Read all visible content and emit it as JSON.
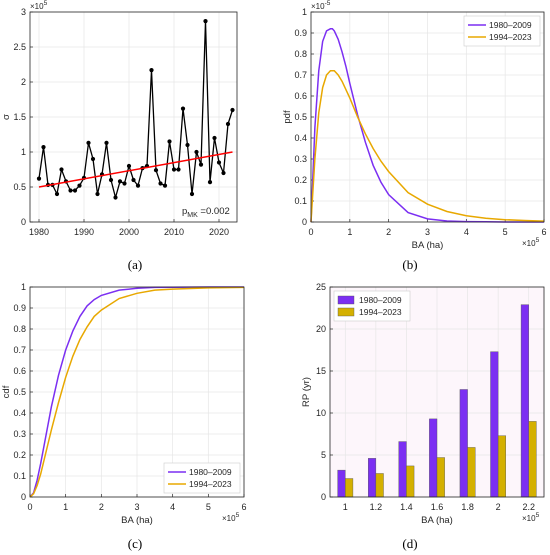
{
  "chart_data": [
    {
      "panel": "(a)",
      "type": "line",
      "xlim": [
        1978,
        2024
      ],
      "ylim": [
        0,
        300000
      ],
      "y_exponent": "×10^5",
      "xticks": [
        1980,
        1990,
        2000,
        2010,
        2020
      ],
      "yticks": [
        0,
        50000,
        100000,
        150000,
        200000,
        250000,
        300000
      ],
      "ytick_labels": [
        "0",
        "0.5",
        "1",
        "1.5",
        "2",
        "2.5",
        "3"
      ],
      "ylabel": "σ",
      "annotation": {
        "text": "p",
        "sub": "MK",
        "suffix": " =0.002"
      },
      "grid": true,
      "colors": {
        "data": "#000000",
        "trend": "#ff0000"
      },
      "series": [
        {
          "x": [
            1980,
            1981,
            1982,
            1983,
            1984,
            1985,
            1986,
            1987,
            1988,
            1989,
            1990,
            1991,
            1992,
            1993,
            1994,
            1995,
            1996,
            1997,
            1998,
            1999,
            2000,
            2001,
            2002,
            2003,
            2004,
            2005,
            2006,
            2007,
            2008,
            2009,
            2010,
            2011,
            2012,
            2013,
            2014,
            2015,
            2016,
            2017,
            2018,
            2019,
            2020,
            2021,
            2022,
            2023
          ],
          "values": [
            62000,
            107000,
            53000,
            53000,
            40000,
            75000,
            58000,
            45000,
            45000,
            52000,
            63000,
            113000,
            90000,
            40000,
            68000,
            113000,
            60000,
            35000,
            58000,
            55000,
            80000,
            60000,
            52000,
            77000,
            80000,
            217000,
            74000,
            55000,
            52000,
            115000,
            75000,
            75000,
            162000,
            110000,
            40000,
            100000,
            82000,
            287000,
            57000,
            120000,
            85000,
            70000,
            140000,
            160000
          ]
        }
      ],
      "trend": {
        "x": [
          1980,
          2023
        ],
        "values": [
          50000,
          100000
        ]
      }
    },
    {
      "panel": "(b)",
      "type": "line",
      "xlim": [
        0,
        600000
      ],
      "ylim": [
        0,
        1e-05
      ],
      "x_exponent": "×10^5",
      "y_exponent": "×10^-5",
      "xticks": [
        0,
        100000,
        200000,
        300000,
        400000,
        500000,
        600000
      ],
      "xtick_labels": [
        "0",
        "1",
        "2",
        "3",
        "4",
        "5",
        "6"
      ],
      "yticks": [
        0,
        1e-06,
        2e-06,
        3e-06,
        4e-06,
        5e-06,
        6e-06,
        7e-06,
        8e-06,
        9e-06,
        1e-05
      ],
      "ytick_labels": [
        "0",
        "0.1",
        "0.2",
        "0.3",
        "0.4",
        "0.5",
        "0.6",
        "0.7",
        "0.8",
        "0.9",
        "1"
      ],
      "xlabel": "BA (ha)",
      "ylabel": "pdf",
      "legend_position": "top-right",
      "grid": true,
      "series": [
        {
          "name": "1980–2009",
          "color": "#7b2ff2",
          "x": [
            0,
            10000,
            20000,
            30000,
            40000,
            50000,
            55000,
            60000,
            70000,
            80000,
            90000,
            100000,
            120000,
            140000,
            160000,
            180000,
            200000,
            250000,
            300000,
            350000,
            400000,
            450000,
            500000,
            550000,
            600000
          ],
          "values": [
            0,
            4.5e-06,
            7.2e-06,
            8.6e-06,
            9.1e-06,
            9.2e-06,
            9.2e-06,
            9.1e-06,
            8.7e-06,
            8.1e-06,
            7.4e-06,
            6.6e-06,
            5.1e-06,
            3.8e-06,
            2.7e-06,
            1.9e-06,
            1.3e-06,
            4.5e-07,
            1.5e-07,
            5e-08,
            2e-08,
            1e-08,
            0,
            0,
            0
          ]
        },
        {
          "name": "1994–2023",
          "color": "#e8a800",
          "x": [
            0,
            10000,
            20000,
            30000,
            40000,
            50000,
            55000,
            60000,
            70000,
            80000,
            90000,
            100000,
            120000,
            140000,
            160000,
            180000,
            200000,
            250000,
            300000,
            350000,
            400000,
            450000,
            500000,
            550000,
            600000
          ],
          "values": [
            0,
            3e-06,
            5.2e-06,
            6.4e-06,
            7e-06,
            7.2e-06,
            7.2e-06,
            7.2e-06,
            7e-06,
            6.7e-06,
            6.3e-06,
            5.9e-06,
            5e-06,
            4.2e-06,
            3.5e-06,
            2.9e-06,
            2.4e-06,
            1.4e-06,
            8.5e-07,
            5e-07,
            3e-07,
            1.8e-07,
            1.1e-07,
            7e-08,
            4e-08
          ]
        }
      ]
    },
    {
      "panel": "(c)",
      "type": "line",
      "xlim": [
        0,
        600000
      ],
      "ylim": [
        0,
        1
      ],
      "x_exponent": "×10^5",
      "xticks": [
        0,
        100000,
        200000,
        300000,
        400000,
        500000,
        600000
      ],
      "xtick_labels": [
        "0",
        "1",
        "2",
        "3",
        "4",
        "5",
        "6"
      ],
      "yticks": [
        0,
        0.1,
        0.2,
        0.3,
        0.4,
        0.5,
        0.6,
        0.7,
        0.8,
        0.9,
        1
      ],
      "ytick_labels": [
        "0",
        "0.1",
        "0.2",
        "0.3",
        "0.4",
        "0.5",
        "0.6",
        "0.7",
        "0.8",
        "0.9",
        "1"
      ],
      "xlabel": "BA (ha)",
      "ylabel": "cdf",
      "legend_position": "bottom-right",
      "grid": true,
      "series": [
        {
          "name": "1980–2009",
          "color": "#7b2ff2",
          "x": [
            0,
            10000,
            20000,
            30000,
            40000,
            50000,
            60000,
            80000,
            100000,
            120000,
            140000,
            160000,
            180000,
            200000,
            250000,
            300000,
            350000,
            400000,
            500000,
            600000
          ],
          "values": [
            0,
            0.02,
            0.08,
            0.16,
            0.25,
            0.34,
            0.43,
            0.58,
            0.7,
            0.79,
            0.86,
            0.91,
            0.94,
            0.96,
            0.985,
            0.994,
            0.998,
            0.999,
            1,
            1
          ]
        },
        {
          "name": "1994–2023",
          "color": "#e8a800",
          "x": [
            0,
            10000,
            20000,
            30000,
            40000,
            50000,
            60000,
            80000,
            100000,
            120000,
            140000,
            160000,
            180000,
            200000,
            250000,
            300000,
            350000,
            400000,
            500000,
            600000
          ],
          "values": [
            0,
            0.015,
            0.055,
            0.11,
            0.18,
            0.25,
            0.32,
            0.45,
            0.57,
            0.67,
            0.75,
            0.81,
            0.86,
            0.89,
            0.945,
            0.97,
            0.985,
            0.99,
            0.996,
            0.998
          ]
        }
      ]
    },
    {
      "panel": "(d)",
      "type": "bar",
      "x_exponent": "×10^5",
      "categories": [
        "1",
        "1.2",
        "1.4",
        "1.6",
        "1.8",
        "2",
        "2.2"
      ],
      "ylim": [
        0,
        25
      ],
      "yticks": [
        0,
        5,
        10,
        15,
        20,
        25
      ],
      "ytick_labels": [
        "0",
        "5",
        "10",
        "15",
        "20",
        "25"
      ],
      "xlabel": "BA (ha)",
      "ylabel": "RP (yr)",
      "legend_position": "top-left",
      "grid": true,
      "series": [
        {
          "name": "1980–2009",
          "color": "#7b2ff2",
          "values": [
            3.2,
            4.6,
            6.6,
            9.3,
            12.8,
            17.3,
            22.9
          ]
        },
        {
          "name": "1994–2023",
          "color": "#d4b000",
          "values": [
            2.2,
            2.8,
            3.7,
            4.7,
            5.9,
            7.3,
            9.0
          ]
        }
      ]
    }
  ],
  "panel_labels": [
    "(a)",
    "(b)",
    "(c)",
    "(d)"
  ]
}
